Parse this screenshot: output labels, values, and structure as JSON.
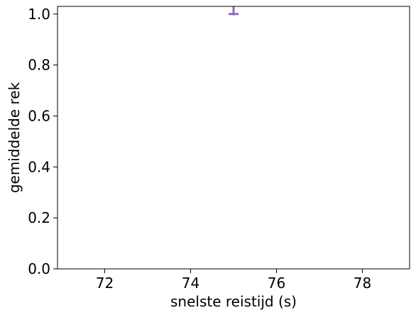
{
  "chart_data": {
    "type": "scatter",
    "title": "",
    "xlabel": "snelste reistijd (s)",
    "ylabel": "gemiddelde rek",
    "xlim": [
      70.9,
      79.1
    ],
    "ylim": [
      0.0,
      1.03
    ],
    "xticks": [
      72,
      74,
      76,
      78
    ],
    "xtick_labels": [
      "72",
      "74",
      "76",
      "78"
    ],
    "yticks": [
      0.0,
      0.2,
      0.4,
      0.6,
      0.8,
      1.0
    ],
    "ytick_labels": [
      "0.0",
      "0.2",
      "0.4",
      "0.6",
      "0.8",
      "1.0"
    ],
    "grid": false,
    "series": [
      {
        "name": "",
        "color": "#9467bd",
        "points": [
          {
            "x": 75.0,
            "y": 1.0,
            "yerr_low": 0.0,
            "yerr_high": 0.05
          }
        ]
      }
    ]
  }
}
